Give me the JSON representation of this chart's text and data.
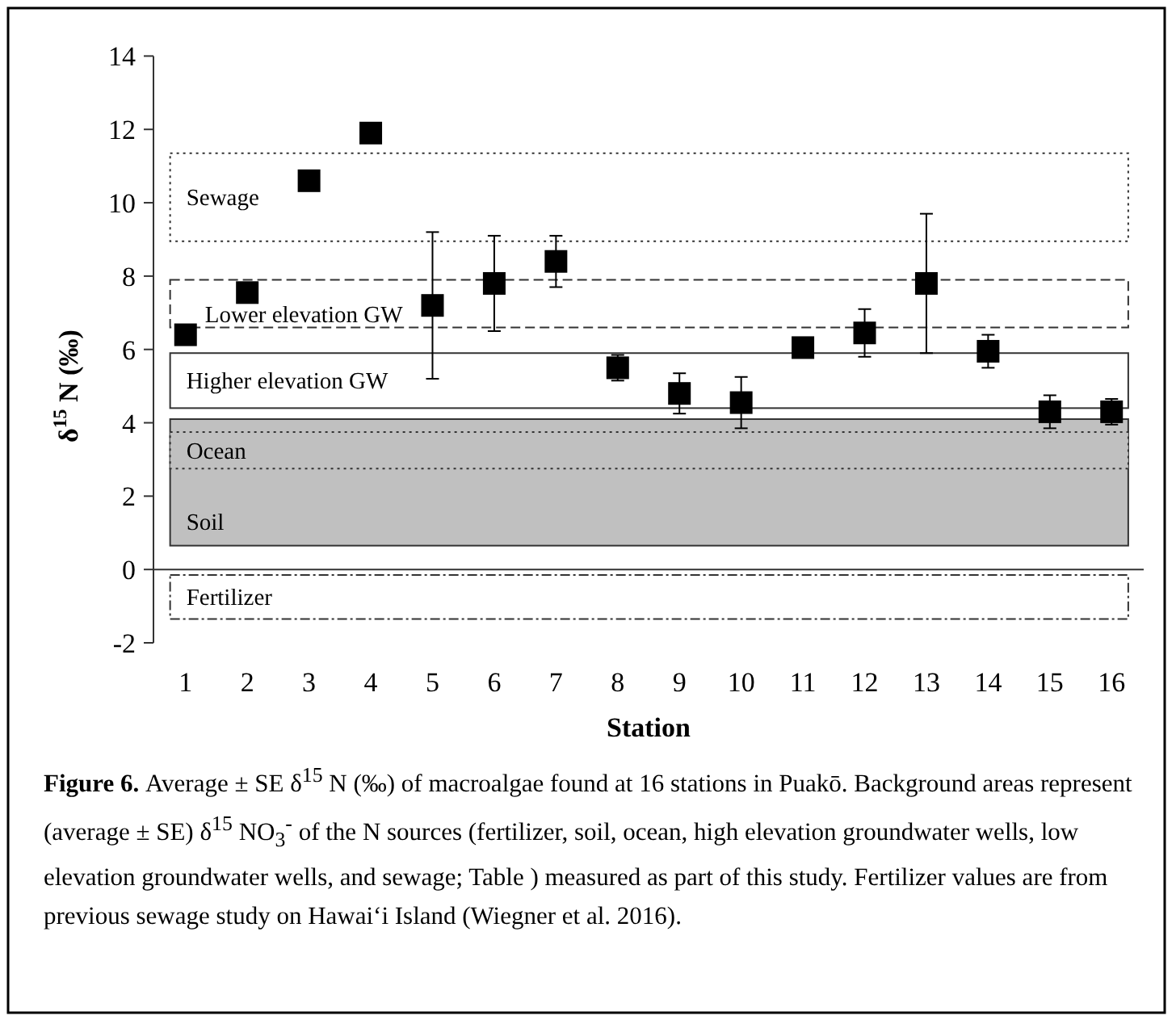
{
  "chart_data": {
    "type": "scatter",
    "xlabel": "Station",
    "ylabel": "δ$^{15}$ N (‰)",
    "categories": [
      "1",
      "2",
      "3",
      "4",
      "5",
      "6",
      "7",
      "8",
      "9",
      "10",
      "11",
      "12",
      "13",
      "14",
      "15",
      "16"
    ],
    "series": [
      {
        "color": "#000000",
        "values": [
          6.4,
          7.55,
          10.6,
          11.9,
          7.2,
          7.8,
          8.4,
          5.5,
          4.8,
          4.55,
          6.05,
          6.45,
          7.8,
          5.95,
          4.3,
          4.3
        ],
        "errors": [
          null,
          null,
          null,
          null,
          2.0,
          1.3,
          0.7,
          0.35,
          0.55,
          0.7,
          null,
          0.65,
          1.9,
          0.45,
          0.45,
          0.35
        ]
      }
    ],
    "ylim": [
      -2,
      14
    ],
    "yticks": [
      -2,
      0,
      2,
      4,
      6,
      8,
      10,
      12,
      14
    ],
    "marker": "square",
    "bands": [
      {
        "axis": "y",
        "from": 8.95,
        "to": 11.35,
        "label": "Sewage",
        "color": "#ffffff"
      },
      {
        "axis": "y",
        "from": 6.6,
        "to": 7.9,
        "label": "Lower elevation GW",
        "color": "#ffffff"
      },
      {
        "axis": "y",
        "from": 4.4,
        "to": 5.9,
        "label": "Higher elevation GW",
        "color": "#ffffff"
      },
      {
        "axis": "y",
        "from": 0.65,
        "to": 4.1,
        "label": "Soil",
        "color": "#c0c0c0"
      },
      {
        "axis": "y",
        "from": 2.75,
        "to": 3.75,
        "label": "Ocean",
        "color": "#c0c0c0"
      },
      {
        "axis": "y",
        "from": -1.35,
        "to": -0.15,
        "label": "Fertilizer",
        "color": "#ffffff"
      }
    ],
    "annotations": [
      "Figure 6.",
      "Average ± SE δ$^{15}$ N (‰) of  macroalgae found at 16 stations in Puakō. Background areas represent (average ± SE) δ$^{15}$ NO$_{3}$$^{-}$ of the N sources (fertilizer, soil, ocean, high elevation groundwater wells, low elevation groundwater wells, and sewage; Table ) measured as part of this study. Fertilizer values are from previous sewage study on Hawai‘i Island (Wiegner et al. 2016)."
    ]
  }
}
